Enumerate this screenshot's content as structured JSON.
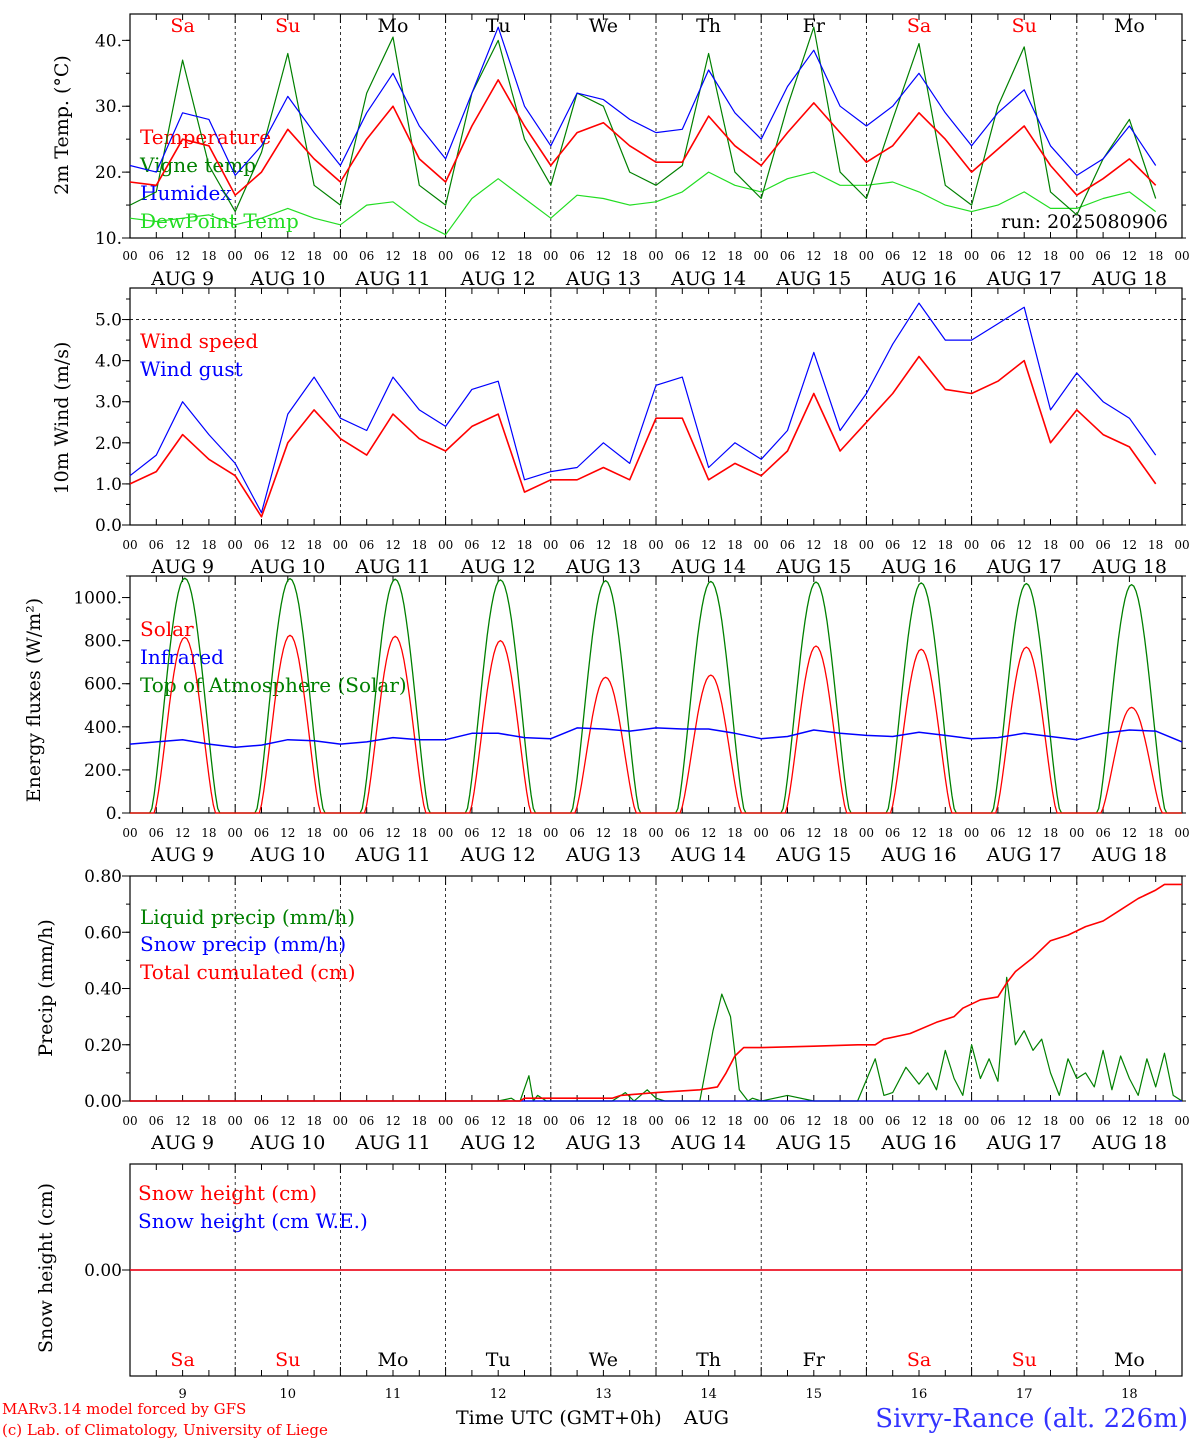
{
  "days": [
    {
      "abbr": "Sa",
      "date": "AUG  9",
      "num": "9",
      "weekend": true
    },
    {
      "abbr": "Su",
      "date": "AUG 10",
      "num": "10",
      "weekend": true
    },
    {
      "abbr": "Mo",
      "date": "AUG 11",
      "num": "11",
      "weekend": false
    },
    {
      "abbr": "Tu",
      "date": "AUG 12",
      "num": "12",
      "weekend": false
    },
    {
      "abbr": "We",
      "date": "AUG 13",
      "num": "13",
      "weekend": false
    },
    {
      "abbr": "Th",
      "date": "AUG 14",
      "num": "14",
      "weekend": false
    },
    {
      "abbr": "Fr",
      "date": "AUG 15",
      "num": "15",
      "weekend": false
    },
    {
      "abbr": "Sa",
      "date": "AUG 16",
      "num": "16",
      "weekend": true
    },
    {
      "abbr": "Su",
      "date": "AUG 17",
      "num": "17",
      "weekend": true
    },
    {
      "abbr": "Mo",
      "date": "AUG 18",
      "num": "18",
      "weekend": false
    }
  ],
  "hour_ticks": [
    "00",
    "06",
    "12",
    "18"
  ],
  "final_tick": "00",
  "run_label": "run: 2025080906",
  "footer": {
    "model": "MARv3.14 model forced by GFS",
    "lab": "(c) Lab. of Climatology, University of Liege",
    "xlabel": "Time UTC (GMT+0h)",
    "month": "AUG",
    "station": "Sivry-Rance (alt. 226m)"
  },
  "colors": {
    "red": "#ff0000",
    "green": "#008000",
    "blue": "#0000ff",
    "lightgreen": "#22dd22",
    "weekend": "#ff0000",
    "weekday": "#000000",
    "station": "#3333ff"
  },
  "chart_data": [
    {
      "type": "line",
      "ylabel": "2m Temp. (°C)",
      "ylim": [
        10,
        44
      ],
      "yticks": [
        10,
        20,
        30,
        40
      ],
      "ytick_labels": [
        "10.",
        "20.",
        "30.",
        "40."
      ],
      "x_unit": "hours since AUG 9 00 UTC",
      "series": [
        {
          "name": "Temperature",
          "color": "red",
          "x": [
            0,
            6,
            12,
            18,
            24,
            30,
            36,
            42,
            48,
            54,
            60,
            66,
            72,
            78,
            84,
            90,
            96,
            102,
            108,
            114,
            120,
            126,
            132,
            138,
            144,
            150,
            156,
            162,
            168,
            174,
            180,
            186,
            192,
            198,
            204,
            210,
            216,
            222,
            228,
            234
          ],
          "y": [
            18.5,
            18,
            25,
            24,
            16.5,
            20,
            26.5,
            22,
            18.5,
            25,
            30,
            22,
            18.5,
            27,
            34,
            27,
            21,
            26,
            27.5,
            24,
            21.5,
            21.5,
            28.5,
            24,
            21,
            26,
            30.5,
            26,
            21.5,
            24,
            29,
            25,
            20,
            23.5,
            27,
            21,
            16.5,
            19,
            22,
            18
          ]
        },
        {
          "name": "Vigne temp",
          "color": "green",
          "x": [
            0,
            6,
            12,
            18,
            24,
            30,
            36,
            42,
            48,
            54,
            60,
            66,
            72,
            78,
            84,
            90,
            96,
            102,
            108,
            114,
            120,
            126,
            132,
            138,
            144,
            150,
            156,
            162,
            168,
            174,
            180,
            186,
            192,
            198,
            204,
            210,
            216,
            222,
            228,
            234
          ],
          "y": [
            15,
            17,
            37,
            21,
            14,
            23,
            38,
            18,
            15,
            32,
            40.5,
            18,
            15,
            32,
            40,
            25,
            18,
            32,
            30,
            20,
            18,
            21,
            38,
            20,
            16,
            30,
            42,
            20,
            16,
            28,
            39.5,
            18,
            15,
            30,
            39,
            17,
            13.5,
            22,
            28,
            16
          ]
        },
        {
          "name": "Humidex",
          "color": "blue",
          "x": [
            0,
            6,
            12,
            18,
            24,
            30,
            36,
            42,
            48,
            54,
            60,
            66,
            72,
            78,
            84,
            90,
            96,
            102,
            108,
            114,
            120,
            126,
            132,
            138,
            144,
            150,
            156,
            162,
            168,
            174,
            180,
            186,
            192,
            198,
            204,
            210,
            216,
            222,
            228,
            234
          ],
          "y": [
            21,
            20,
            29,
            28,
            19.5,
            24,
            31.5,
            26,
            21,
            29,
            35,
            27,
            22,
            32,
            42,
            30,
            24,
            32,
            31,
            28,
            26,
            26.5,
            35.5,
            29,
            25,
            33,
            38.5,
            30,
            27,
            30,
            35,
            29,
            24,
            29,
            32.5,
            24,
            19.5,
            22,
            27,
            21
          ]
        },
        {
          "name": "DewPoint Temp",
          "color": "lightgreen",
          "x": [
            0,
            6,
            12,
            18,
            24,
            30,
            36,
            42,
            48,
            54,
            60,
            66,
            72,
            78,
            84,
            90,
            96,
            102,
            108,
            114,
            120,
            126,
            132,
            138,
            144,
            150,
            156,
            162,
            168,
            174,
            180,
            186,
            192,
            198,
            204,
            210,
            216,
            222,
            228,
            234
          ],
          "y": [
            13,
            12.5,
            13,
            13.5,
            12,
            13,
            14.5,
            13,
            12,
            15,
            15.5,
            12.5,
            10.5,
            16,
            19,
            16,
            13,
            16.5,
            16,
            15,
            15.5,
            17,
            20,
            18,
            17,
            19,
            20,
            18,
            18,
            18.5,
            17,
            15,
            14,
            15,
            17,
            14.5,
            14.5,
            16,
            17,
            14
          ]
        }
      ]
    },
    {
      "type": "line",
      "ylabel": "10m Wind (m/s)",
      "ylim": [
        0,
        5.5
      ],
      "yticks": [
        0,
        1,
        2,
        3,
        4,
        5
      ],
      "ytick_labels": [
        "0.0",
        "1.0",
        "2.0",
        "3.0",
        "4.0",
        "5.0"
      ],
      "x_unit": "hours since AUG 9 00 UTC",
      "series": [
        {
          "name": "Wind speed",
          "color": "red",
          "x": [
            0,
            6,
            12,
            18,
            24,
            30,
            36,
            42,
            48,
            54,
            60,
            66,
            72,
            78,
            84,
            90,
            96,
            102,
            108,
            114,
            120,
            126,
            132,
            138,
            144,
            150,
            156,
            162,
            168,
            174,
            180,
            186,
            192,
            198,
            204,
            210,
            216,
            222,
            228,
            234
          ],
          "y": [
            1.0,
            1.3,
            2.2,
            1.6,
            1.2,
            0.2,
            2.0,
            2.8,
            2.1,
            1.7,
            2.7,
            2.1,
            1.8,
            2.4,
            2.7,
            0.8,
            1.1,
            1.1,
            1.4,
            1.1,
            2.6,
            2.6,
            1.1,
            1.5,
            1.2,
            1.8,
            3.2,
            1.8,
            2.5,
            3.2,
            4.1,
            3.3,
            3.2,
            3.5,
            4.0,
            2.0,
            2.8,
            2.2,
            1.9,
            1.0
          ]
        },
        {
          "name": "Wind gust",
          "color": "blue",
          "x": [
            0,
            6,
            12,
            18,
            24,
            30,
            36,
            42,
            48,
            54,
            60,
            66,
            72,
            78,
            84,
            90,
            96,
            102,
            108,
            114,
            120,
            126,
            132,
            138,
            144,
            150,
            156,
            162,
            168,
            174,
            180,
            186,
            192,
            198,
            204,
            210,
            216,
            222,
            228,
            234
          ],
          "y": [
            1.2,
            1.7,
            3.0,
            2.2,
            1.5,
            0.3,
            2.7,
            3.6,
            2.6,
            2.3,
            3.6,
            2.8,
            2.4,
            3.3,
            3.5,
            1.1,
            1.3,
            1.4,
            2.0,
            1.5,
            3.4,
            3.6,
            1.4,
            2.0,
            1.6,
            2.3,
            4.2,
            2.3,
            3.2,
            4.4,
            5.4,
            4.5,
            4.5,
            4.9,
            5.3,
            2.8,
            3.7,
            3.0,
            2.6,
            1.7
          ]
        }
      ]
    },
    {
      "type": "line",
      "ylabel": "Energy fluxes (W/m²)",
      "ylim": [
        0,
        1100
      ],
      "yticks": [
        0,
        200,
        400,
        600,
        800,
        1000
      ],
      "ytick_labels": [
        "0.",
        "200.",
        "400.",
        "600.",
        "800.",
        "1000."
      ],
      "x_unit": "hours since AUG 9 00 UTC",
      "series": [
        {
          "name": "Solar",
          "color": "red",
          "peak_hour": 12.5,
          "half_width_hours": 7,
          "daily_peaks": [
            815,
            825,
            820,
            800,
            630,
            640,
            775,
            760,
            770,
            490
          ]
        },
        {
          "name": "Infrared",
          "color": "blue",
          "x": [
            0,
            6,
            12,
            18,
            24,
            30,
            36,
            42,
            48,
            54,
            60,
            66,
            72,
            78,
            84,
            90,
            96,
            102,
            108,
            114,
            120,
            126,
            132,
            138,
            144,
            150,
            156,
            162,
            168,
            174,
            180,
            186,
            192,
            198,
            204,
            210,
            216,
            222,
            228,
            234,
            240
          ],
          "y": [
            320,
            330,
            340,
            320,
            305,
            315,
            340,
            335,
            320,
            330,
            350,
            340,
            340,
            370,
            370,
            350,
            345,
            395,
            390,
            380,
            395,
            390,
            390,
            370,
            345,
            355,
            385,
            370,
            360,
            355,
            375,
            360,
            345,
            350,
            370,
            355,
            340,
            370,
            385,
            380,
            330
          ]
        },
        {
          "name": "Top of Atmosphere (Solar)",
          "color": "green",
          "peak_hour": 12.5,
          "half_width_hours": 7.8,
          "daily_peaks": [
            1090,
            1088,
            1085,
            1082,
            1078,
            1075,
            1072,
            1068,
            1065,
            1060
          ]
        }
      ]
    },
    {
      "type": "line",
      "ylabel": "Precip (mm/h)",
      "ylim": [
        0,
        0.8
      ],
      "yticks": [
        0,
        0.2,
        0.4,
        0.6,
        0.8
      ],
      "ytick_labels": [
        "0.00",
        "0.20",
        "0.40",
        "0.60",
        "0.80"
      ],
      "x_unit": "hours since AUG 9 00 UTC",
      "series": [
        {
          "name": "Liquid precip (mm/h)",
          "color": "green",
          "x": [
            0,
            84,
            87,
            88,
            89,
            91,
            92,
            93,
            95,
            110,
            113,
            115,
            118,
            120,
            122,
            130,
            133,
            135,
            137,
            139,
            141,
            142,
            144,
            150,
            156,
            166,
            170,
            172,
            174,
            177,
            180,
            182,
            184,
            186,
            188,
            190,
            192,
            194,
            196,
            198,
            200,
            202,
            204,
            206,
            208,
            210,
            212,
            214,
            216,
            218,
            220,
            222,
            224,
            226,
            228,
            230,
            232,
            234,
            236,
            238,
            240
          ],
          "y": [
            0,
            0,
            0.01,
            0,
            0,
            0.09,
            0,
            0.02,
            0,
            0,
            0.03,
            0,
            0.04,
            0.01,
            0,
            0,
            0.25,
            0.38,
            0.3,
            0.04,
            0,
            0.01,
            0,
            0.02,
            0,
            0,
            0.15,
            0.02,
            0.03,
            0.12,
            0.06,
            0.1,
            0.04,
            0.18,
            0.08,
            0.02,
            0.2,
            0.08,
            0.15,
            0.07,
            0.44,
            0.2,
            0.25,
            0.18,
            0.22,
            0.1,
            0.02,
            0.15,
            0.08,
            0.1,
            0.05,
            0.18,
            0.04,
            0.16,
            0.08,
            0.02,
            0.15,
            0.05,
            0.17,
            0.02,
            0
          ]
        },
        {
          "name": "Snow precip (mm/h)",
          "color": "blue",
          "x": [
            0,
            240
          ],
          "y": [
            0,
            0
          ]
        },
        {
          "name": "Total cumulated (cm)",
          "color": "red",
          "x": [
            0,
            89,
            90,
            110,
            112,
            120,
            130,
            134,
            136,
            138,
            140,
            144,
            156,
            166,
            170,
            172,
            178,
            184,
            188,
            190,
            194,
            198,
            200,
            202,
            206,
            210,
            214,
            218,
            222,
            226,
            230,
            234,
            236,
            240
          ],
          "y": [
            0,
            0,
            0.01,
            0.01,
            0.02,
            0.03,
            0.04,
            0.05,
            0.1,
            0.16,
            0.19,
            0.19,
            0.195,
            0.2,
            0.2,
            0.22,
            0.24,
            0.28,
            0.3,
            0.33,
            0.36,
            0.37,
            0.42,
            0.46,
            0.51,
            0.57,
            0.59,
            0.62,
            0.64,
            0.68,
            0.72,
            0.75,
            0.77,
            0.77
          ]
        }
      ]
    },
    {
      "type": "line",
      "ylabel": "Snow height (cm)",
      "ylim": [
        -1,
        1
      ],
      "yticks": [
        0
      ],
      "ytick_labels": [
        "0.00"
      ],
      "x_unit": "hours since AUG 9 00 UTC",
      "series": [
        {
          "name": "Snow height (cm)",
          "color": "red",
          "x": [
            0,
            240
          ],
          "y": [
            0,
            0
          ]
        },
        {
          "name": "Snow height (cm W.E.)",
          "color": "blue",
          "x": [
            0,
            240
          ],
          "y": [
            0,
            0
          ]
        }
      ]
    }
  ]
}
